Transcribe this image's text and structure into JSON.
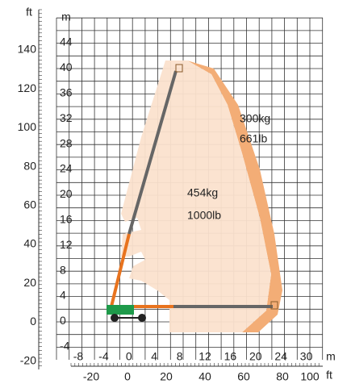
{
  "axes": {
    "left_ft_unit": "ft",
    "left_ft_ticks": [
      "140",
      "120",
      "100",
      "80",
      "60",
      "40",
      "20",
      "0",
      "-20"
    ],
    "left_m_unit": "m",
    "left_m_ticks": [
      "44",
      "40",
      "36",
      "32",
      "28",
      "24",
      "20",
      "16",
      "12",
      "8",
      "4",
      "0",
      "-4"
    ],
    "bottom_m_ticks": [
      "-8",
      "-4",
      "0",
      "4",
      "8",
      "12",
      "16",
      "20",
      "24",
      "30"
    ],
    "bottom_m_unit": "m",
    "bottom_ft_ticks": [
      "-20",
      "0",
      "20",
      "40",
      "60",
      "80",
      "100"
    ],
    "bottom_ft_unit": "ft"
  },
  "zones": [
    {
      "weight": "454kg",
      "weight_lb": "1000lb"
    },
    {
      "weight": "300kg",
      "weight_lb": "661lb"
    }
  ]
}
